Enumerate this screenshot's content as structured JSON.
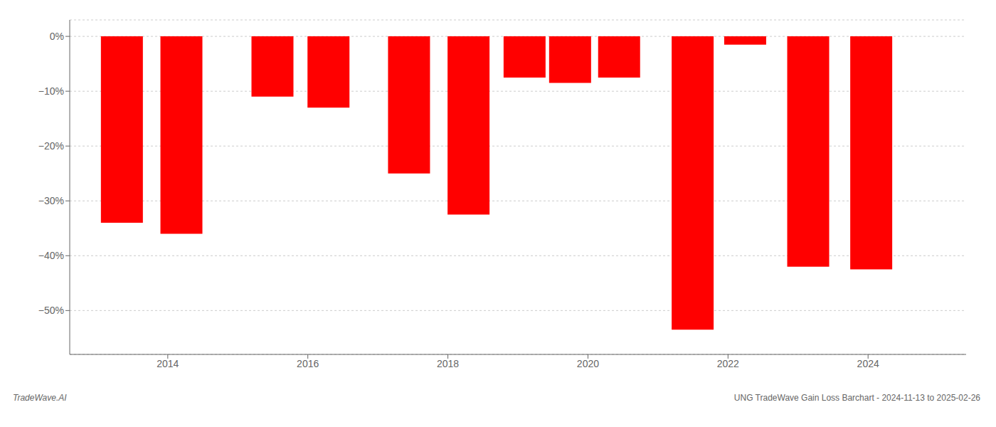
{
  "chart_data": {
    "type": "bar",
    "x": [
      2013.35,
      2014.2,
      2015.5,
      2016.3,
      2017.45,
      2018.3,
      2019.1,
      2019.75,
      2020.45,
      2021.5,
      2022.25,
      2023.15,
      2024.05
    ],
    "values": [
      -34.0,
      -36.0,
      -11.0,
      -13.0,
      -25.0,
      -32.5,
      -7.5,
      -8.5,
      -7.5,
      -53.5,
      -1.5,
      -42.0,
      -42.5
    ],
    "color": "#ff0000",
    "xlim": [
      2012.6,
      2025.4
    ],
    "xticks": [
      2014,
      2016,
      2018,
      2020,
      2022,
      2024
    ],
    "ylim": [
      -58,
      3
    ],
    "yticks": [
      {
        "value": 0,
        "label": "0%"
      },
      {
        "value": -10,
        "label": "−10%"
      },
      {
        "value": -20,
        "label": "−20%"
      },
      {
        "value": -30,
        "label": "−30%"
      },
      {
        "value": -40,
        "label": "−40%"
      },
      {
        "value": -50,
        "label": "−50%"
      }
    ],
    "grid": true,
    "annotations": [
      {
        "text": "TradeWave.AI"
      },
      {
        "text": "UNG TradeWave Gain Loss Barchart - 2024-11-13 to 2025-02-26"
      }
    ]
  }
}
